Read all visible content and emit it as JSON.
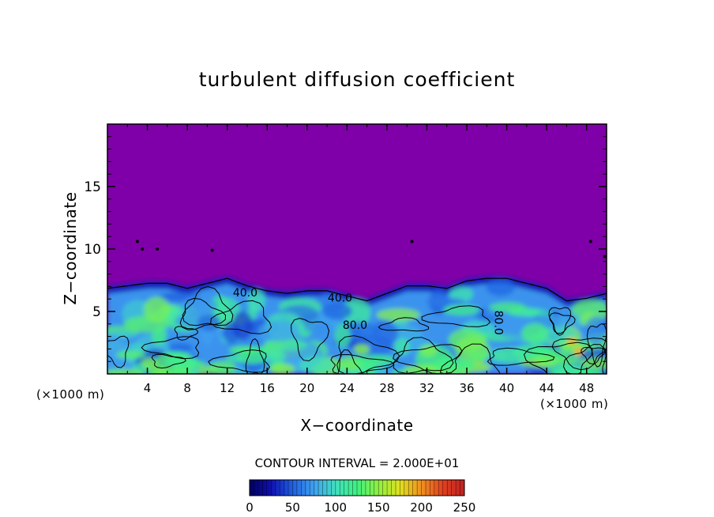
{
  "chart_data": {
    "type": "heatmap",
    "title": "turbulent diffusion coefficient",
    "xlabel": "X−coordinate",
    "ylabel": "Z−coordinate",
    "x_unit_left": "(×1000 m)",
    "x_unit_right": "(×1000 m)",
    "xlim": [
      0,
      50
    ],
    "ylim": [
      0,
      20
    ],
    "x_ticks": [
      4,
      8,
      12,
      16,
      20,
      24,
      28,
      32,
      36,
      40,
      44,
      48
    ],
    "y_ticks": [
      5,
      10,
      15
    ],
    "contour_labels": [
      {
        "text": "40.0",
        "x": 13.8,
        "y": 6.2
      },
      {
        "text": "40.0",
        "x": 23.3,
        "y": 5.8
      },
      {
        "text": "80.0",
        "x": 24.8,
        "y": 3.6
      },
      {
        "text": "80.0",
        "x": 38.8,
        "y": 4.1,
        "rotated": true
      }
    ],
    "contour_interval_text": "CONTOUR INTERVAL = 2.000E+01",
    "colorbar": {
      "min": 0,
      "max": 250,
      "ticks": [
        0,
        50,
        100,
        150,
        200,
        250
      ],
      "colors": [
        "#000060",
        "#1010b0",
        "#2060e0",
        "#40a0f0",
        "#40e0c0",
        "#40f080",
        "#90f040",
        "#e0e020",
        "#f09020",
        "#e04020",
        "#c02020"
      ]
    },
    "background_color": "#7f00a8",
    "boundary_layer_top_profile": [
      [
        0,
        7.0
      ],
      [
        2,
        7.2
      ],
      [
        4,
        7.4
      ],
      [
        6,
        7.4
      ],
      [
        8,
        7.0
      ],
      [
        10,
        7.4
      ],
      [
        12,
        7.8
      ],
      [
        14,
        7.2
      ],
      [
        16,
        6.8
      ],
      [
        18,
        6.6
      ],
      [
        20,
        6.8
      ],
      [
        22,
        6.8
      ],
      [
        24,
        6.4
      ],
      [
        26,
        6.0
      ],
      [
        28,
        6.6
      ],
      [
        30,
        7.2
      ],
      [
        32,
        7.2
      ],
      [
        34,
        7.0
      ],
      [
        36,
        7.6
      ],
      [
        38,
        7.8
      ],
      [
        40,
        7.8
      ],
      [
        42,
        7.4
      ],
      [
        44,
        7.0
      ],
      [
        46,
        6.0
      ],
      [
        48,
        6.2
      ],
      [
        50,
        6.6
      ]
    ]
  }
}
